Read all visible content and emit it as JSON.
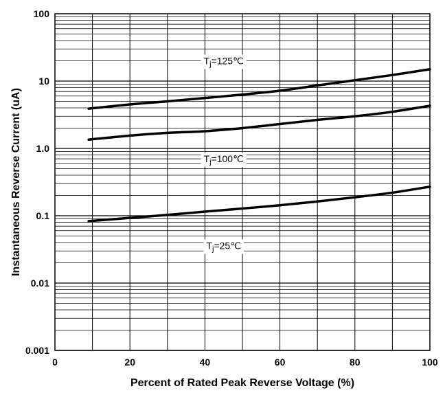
{
  "chart_data": {
    "type": "line",
    "title": "",
    "xlabel": "Percent of Rated Peak Reverse Voltage (%)",
    "ylabel": "Instantaneous Reverse Current (uA)",
    "xlim": [
      0,
      100
    ],
    "ylim": [
      0.001,
      100
    ],
    "yscale": "log",
    "grid": true,
    "x_ticks": [
      "0",
      "20",
      "40",
      "60",
      "80",
      "100"
    ],
    "x_tick_values": [
      0,
      20,
      40,
      60,
      80,
      100
    ],
    "y_ticks": [
      "100",
      "10",
      "1.0",
      "0.1",
      "0.01",
      "0.001"
    ],
    "y_tick_values": [
      100,
      10,
      1,
      0.1,
      0.01,
      0.001
    ],
    "series": [
      {
        "label_prefix": "T",
        "label_sub": "j",
        "label_suffix": "=125℃",
        "label_at": [
          45,
          20
        ],
        "points": [
          [
            9,
            3.9
          ],
          [
            20,
            4.5
          ],
          [
            30,
            5.0
          ],
          [
            40,
            5.6
          ],
          [
            50,
            6.3
          ],
          [
            60,
            7.2
          ],
          [
            70,
            8.6
          ],
          [
            80,
            10.3
          ],
          [
            90,
            12.3
          ],
          [
            100,
            15.0
          ]
        ]
      },
      {
        "label_prefix": "T",
        "label_sub": "j",
        "label_suffix": "=100℃",
        "label_at": [
          45,
          0.7
        ],
        "points": [
          [
            9,
            1.35
          ],
          [
            20,
            1.55
          ],
          [
            30,
            1.7
          ],
          [
            40,
            1.8
          ],
          [
            50,
            2.0
          ],
          [
            60,
            2.3
          ],
          [
            70,
            2.65
          ],
          [
            80,
            3.0
          ],
          [
            90,
            3.5
          ],
          [
            100,
            4.3
          ]
        ]
      },
      {
        "label_prefix": "T",
        "label_sub": "j",
        "label_suffix": "=25℃",
        "label_at": [
          45,
          0.036
        ],
        "points": [
          [
            9,
            0.083
          ],
          [
            20,
            0.093
          ],
          [
            30,
            0.103
          ],
          [
            40,
            0.115
          ],
          [
            50,
            0.128
          ],
          [
            60,
            0.143
          ],
          [
            70,
            0.163
          ],
          [
            80,
            0.188
          ],
          [
            90,
            0.22
          ],
          [
            100,
            0.27
          ]
        ]
      }
    ]
  }
}
